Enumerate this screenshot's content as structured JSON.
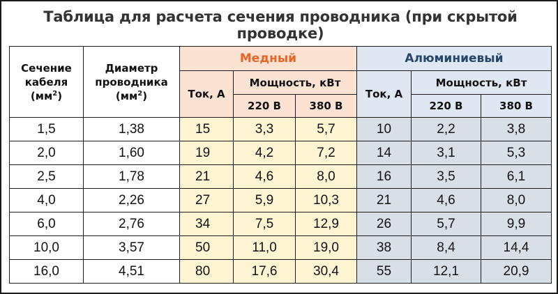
{
  "title": "Таблица для расчета сечения проводника (при скрытой проводке)",
  "headers": {
    "section_line1": "Сечение",
    "section_line2": "кабеля",
    "section_unit": "(мм",
    "section_unit_close": ")",
    "diameter_line1": "Диаметр",
    "diameter_line2": "проводника",
    "diameter_unit": "(мм",
    "diameter_unit_close": ")",
    "sup": "2",
    "copper": "Медный",
    "aluminum": "Алюминиевый",
    "current": "Ток, А",
    "power": "Мощность, кВт",
    "v220": "220 В",
    "v380": "380 В"
  },
  "colors": {
    "copper_header_bg": "#fbe2d3",
    "copper_cell_bg": "#fff5d2",
    "copper_title_text": "#e8652a",
    "aluminum_header_bg": "#dfe7f2",
    "aluminum_cell_bg": "#d9dfe6",
    "aluminum_title_text": "#27466b"
  },
  "rows": [
    [
      "1,5",
      "1,38",
      "15",
      "3,3",
      "5,7",
      "10",
      "2,2",
      "3,8"
    ],
    [
      "2,0",
      "1,60",
      "19",
      "4,2",
      "7,2",
      "14",
      "3,1",
      "5,3"
    ],
    [
      "2,5",
      "1,78",
      "21",
      "4,6",
      "8,0",
      "16",
      "3,5",
      "6,1"
    ],
    [
      "4,0",
      "2,26",
      "27",
      "5,9",
      "10,3",
      "21",
      "4,6",
      "8,0"
    ],
    [
      "6,0",
      "2,76",
      "34",
      "7,5",
      "12,9",
      "26",
      "5,7",
      "9,9"
    ],
    [
      "10,0",
      "3,57",
      "50",
      "11,0",
      "19,0",
      "38",
      "8,4",
      "14,4"
    ],
    [
      "16,0",
      "4,51",
      "80",
      "17,6",
      "30,4",
      "55",
      "12,1",
      "20,9"
    ]
  ]
}
